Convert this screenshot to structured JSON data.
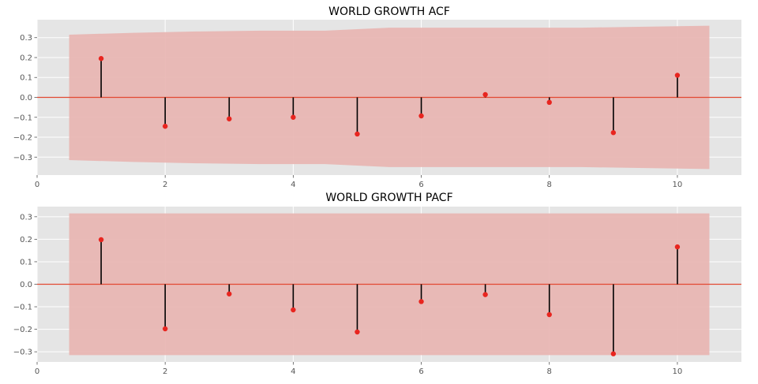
{
  "chart_data": [
    {
      "type": "stem",
      "title": "WORLD GROWTH ACF",
      "xlim": [
        0,
        11
      ],
      "ylim": [
        -0.39,
        0.39
      ],
      "xticks": [
        0,
        2,
        4,
        6,
        8,
        10
      ],
      "xtick_labels": [
        "0",
        "2",
        "4",
        "6",
        "8",
        "10"
      ],
      "yticks": [
        -0.3,
        -0.2,
        -0.1,
        0.0,
        0.1,
        0.2,
        0.3
      ],
      "ytick_labels": [
        "−0.3",
        "−0.2",
        "−0.1",
        "0.0",
        "0.1",
        "0.2",
        "0.3"
      ],
      "grid": true,
      "lags": [
        1,
        2,
        3,
        4,
        5,
        6,
        7,
        8,
        9,
        10
      ],
      "values": [
        0.195,
        -0.145,
        -0.108,
        -0.1,
        -0.184,
        -0.093,
        0.014,
        -0.025,
        -0.177,
        0.111
      ],
      "confidence_band": {
        "x": [
          0.5,
          1.5,
          2.5,
          3.5,
          4.5,
          5.5,
          6.5,
          7.5,
          8.5,
          9.5,
          10.5
        ],
        "upper": [
          0.315,
          0.324,
          0.331,
          0.335,
          0.335,
          0.35,
          0.35,
          0.35,
          0.35,
          0.355,
          0.36
        ],
        "lower": [
          -0.315,
          -0.324,
          -0.331,
          -0.335,
          -0.335,
          -0.35,
          -0.35,
          -0.35,
          -0.35,
          -0.355,
          -0.36
        ]
      }
    },
    {
      "type": "stem",
      "title": "WORLD GROWTH PACF",
      "xlim": [
        0,
        11
      ],
      "ylim": [
        -0.345,
        0.345
      ],
      "xticks": [
        0,
        2,
        4,
        6,
        8,
        10
      ],
      "xtick_labels": [
        "0",
        "2",
        "4",
        "6",
        "8",
        "10"
      ],
      "yticks": [
        -0.3,
        -0.2,
        -0.1,
        0.0,
        0.1,
        0.2,
        0.3
      ],
      "ytick_labels": [
        "−0.3",
        "−0.2",
        "−0.1",
        "0.0",
        "0.1",
        "0.2",
        "0.3"
      ],
      "grid": true,
      "lags": [
        1,
        2,
        3,
        4,
        5,
        6,
        7,
        8,
        9,
        10
      ],
      "values": [
        0.198,
        -0.198,
        -0.043,
        -0.114,
        -0.212,
        -0.077,
        -0.046,
        -0.135,
        -0.309,
        0.166
      ],
      "confidence_band": {
        "x": [
          0.5,
          10.5
        ],
        "upper": [
          0.315,
          0.315
        ],
        "lower": [
          -0.315,
          -0.315
        ]
      }
    }
  ],
  "colors": {
    "axes_background": "#e5e5e5",
    "grid": "#ffffff",
    "band": "#e8b4b0",
    "zero_line": "#e24a33",
    "stem": "#000000",
    "marker": "#e8251f"
  }
}
